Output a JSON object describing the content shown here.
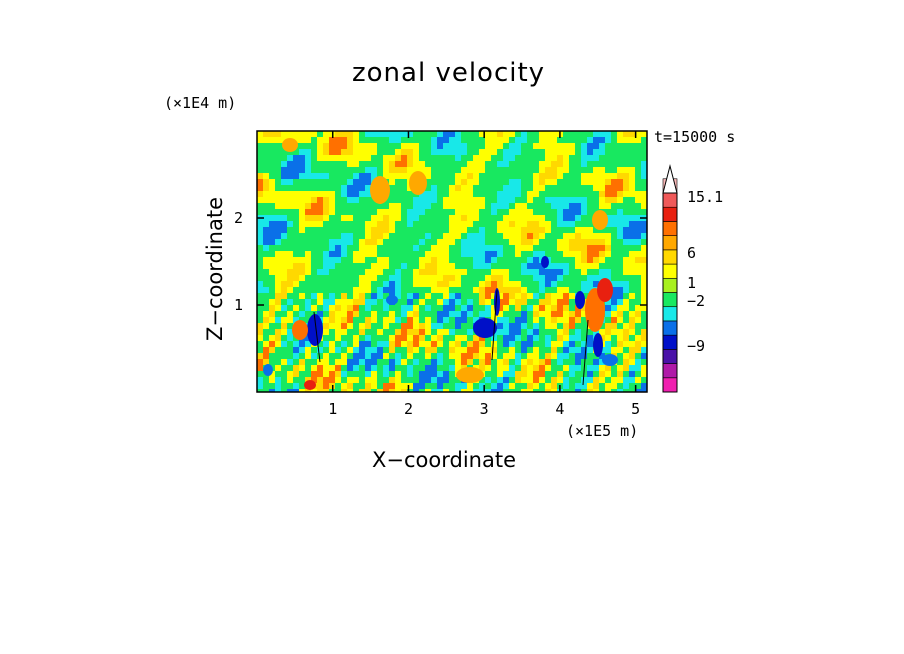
{
  "chart_data": {
    "type": "heatmap",
    "title": "zonal velocity",
    "xlabel": "X−coordinate",
    "ylabel": "Z−coordinate",
    "x_unit": "(×1E5 m)",
    "y_unit": "(×1E4 m)",
    "time_label": "t=15000 s",
    "xlim": [
      0,
      5.15
    ],
    "ylim": [
      0,
      3.0
    ],
    "x_ticks": [
      "1",
      "2",
      "3",
      "4",
      "5"
    ],
    "x_tick_values": [
      1,
      2,
      3,
      4,
      5
    ],
    "y_ticks": [
      "1",
      "2"
    ],
    "y_tick_values": [
      1,
      2
    ],
    "colorbar": {
      "labels": [
        "15.1",
        "6",
        "1",
        "−2",
        "−9"
      ],
      "label_values": [
        15.1,
        6,
        1,
        -2,
        -9
      ],
      "colors": [
        "#f020b0",
        "#b01aa8",
        "#4a12a8",
        "#0010c8",
        "#0a70e8",
        "#18e8e8",
        "#18e860",
        "#a8f020",
        "#ffff00",
        "#ffd800",
        "#ffa800",
        "#ff7000",
        "#e82010",
        "#f05a5a",
        "#f8b8b8",
        "#ffffff"
      ],
      "extend_top": true
    },
    "grid": false
  }
}
